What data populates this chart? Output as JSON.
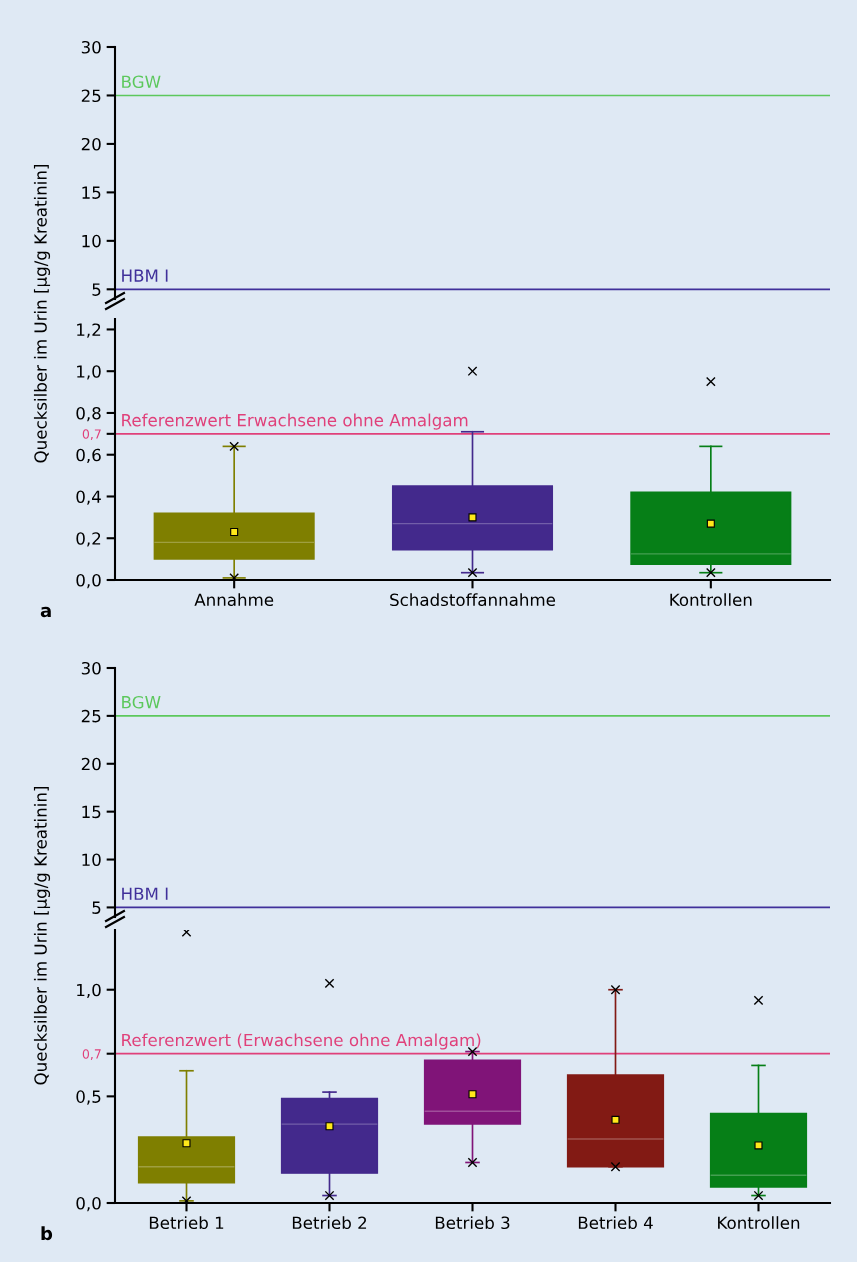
{
  "chart_data": [
    {
      "type": "box",
      "ylabel": "Quecksilber im Urin [µg/g Kreatinin]",
      "categories": [
        null,
        null,
        null
      ],
      "ylim": [
        4,
        30
      ],
      "yticks": [
        5,
        10,
        15,
        20,
        25,
        30
      ],
      "tick_labels": "y",
      "ref_lines": [
        {
          "axis": "y",
          "value": 25,
          "label": "BGW",
          "color": "#5cc85c"
        },
        {
          "axis": "y",
          "value": 5,
          "label": "HBM I",
          "color": "#40309a"
        }
      ]
    },
    {
      "type": "box",
      "categories": [
        "Annahme",
        "Schadstoffannahme",
        "Kontrollen"
      ],
      "ylim": [
        0,
        1.25
      ],
      "yticks": [
        {
          "value": 0,
          "label": "0,0"
        },
        {
          "value": 0.2,
          "label": "0,2"
        },
        {
          "value": 0.4,
          "label": "0,4"
        },
        {
          "value": 0.6,
          "label": "0,6"
        },
        {
          "value": 0.7,
          "label": "0,7"
        },
        {
          "value": 0.8,
          "label": "0,8"
        },
        {
          "value": 1.0,
          "label": "1,0"
        },
        {
          "value": 1.2,
          "label": "1,2"
        }
      ],
      "colors": [
        "#7f7f00",
        "#43298c",
        "#067f17"
      ],
      "boxes": [
        {
          "low": 0.01,
          "q1": 0.1,
          "median": 0.18,
          "q3": 0.32,
          "high": 0.64,
          "mean": 0.23,
          "outliers": [
            0.64,
            0.01
          ]
        },
        {
          "low": 0.035,
          "q1": 0.145,
          "median": 0.27,
          "q3": 0.45,
          "high": 0.71,
          "mean": 0.3,
          "outliers": [
            1.0,
            0.035
          ]
        },
        {
          "low": 0.035,
          "q1": 0.075,
          "median": 0.125,
          "q3": 0.42,
          "high": 0.64,
          "mean": 0.27,
          "outliers": [
            0.95,
            0.035
          ]
        }
      ],
      "ref_lines": [
        {
          "axis": "y",
          "value": 0.7,
          "label": "Referenzwert Erwachsene ohne Amalgam",
          "color": "#e0407a"
        }
      ],
      "annotations": [
        "a"
      ]
    },
    {
      "type": "box",
      "ylabel": "Quecksilber im Urin [µg/g Kreatinin]",
      "categories": [
        null,
        null,
        null,
        null,
        null
      ],
      "ylim": [
        4,
        30
      ],
      "yticks": [
        5,
        10,
        15,
        20,
        25,
        30
      ],
      "tick_labels": "y",
      "ref_lines": [
        {
          "axis": "y",
          "value": 25,
          "label": "BGW",
          "color": "#5cc85c"
        },
        {
          "axis": "y",
          "value": 5,
          "label": "HBM I",
          "color": "#40309a"
        }
      ]
    },
    {
      "type": "box",
      "categories": [
        "Betrieb 1",
        "Betrieb 2",
        "Betrieb 3",
        "Betrieb 4",
        "Kontrollen"
      ],
      "ylim": [
        0,
        1.28
      ],
      "yticks": [
        {
          "value": 0,
          "label": "0,0"
        },
        {
          "value": 0.5,
          "label": "0,5"
        },
        {
          "value": 0.7,
          "label": "0,7"
        },
        {
          "value": 1.0,
          "label": "1,0"
        }
      ],
      "colors": [
        "#7f7f00",
        "#43298c",
        "#801478",
        "#821a14",
        "#067f17"
      ],
      "boxes": [
        {
          "low": 0.01,
          "q1": 0.095,
          "median": 0.17,
          "q3": 0.31,
          "high": 0.62,
          "mean": 0.28,
          "outliers": [
            1.27,
            0.01
          ]
        },
        {
          "low": 0.035,
          "q1": 0.14,
          "median": 0.37,
          "q3": 0.49,
          "high": 0.52,
          "mean": 0.36,
          "outliers": [
            1.03,
            0.035
          ]
        },
        {
          "low": 0.19,
          "q1": 0.37,
          "median": 0.43,
          "q3": 0.67,
          "high": 0.71,
          "mean": 0.51,
          "outliers": [
            0.71,
            0.19
          ]
        },
        {
          "low": 0.17,
          "q1": 0.17,
          "median": 0.3,
          "q3": 0.6,
          "high": 1.0,
          "mean": 0.39,
          "outliers": [
            1.0,
            0.17
          ]
        },
        {
          "low": 0.035,
          "q1": 0.075,
          "median": 0.13,
          "q3": 0.42,
          "high": 0.645,
          "mean": 0.27,
          "outliers": [
            0.95,
            0.035
          ]
        }
      ],
      "ref_lines": [
        {
          "axis": "y",
          "value": 0.7,
          "label": "Referenzwert (Erwachsene ohne Amalgam)",
          "color": "#e0407a"
        }
      ],
      "annotations": [
        "b"
      ]
    }
  ]
}
